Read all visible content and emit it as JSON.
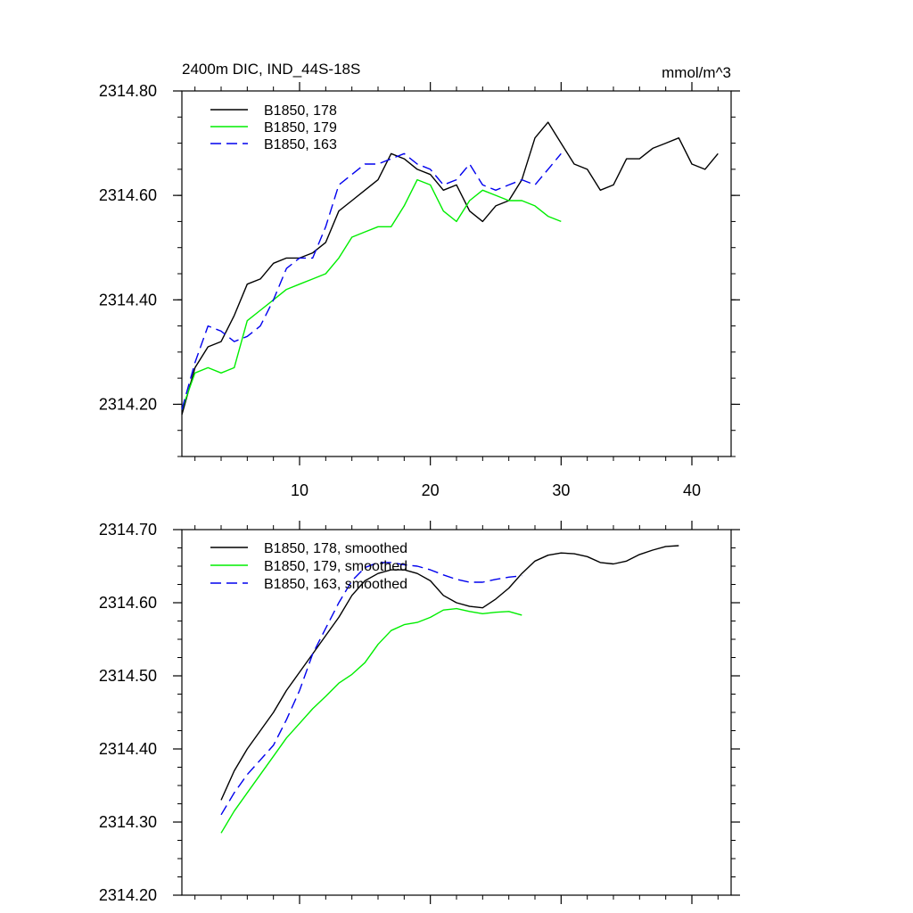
{
  "chart_data": [
    {
      "type": "line",
      "title": "2400m DIC, IND_44S-18S",
      "units": "mmol/m^3",
      "xlim": [
        1,
        43
      ],
      "ylim": [
        2314.1,
        2314.8
      ],
      "xticks": [
        10,
        20,
        30,
        40
      ],
      "xtick_labels": [
        "10",
        "20",
        "30",
        "40"
      ],
      "yticks": [
        2314.2,
        2314.4,
        2314.6,
        2314.8
      ],
      "ytick_labels": [
        "2314.20",
        "2314.40",
        "2314.60",
        "2314.80"
      ],
      "series": [
        {
          "name": "B1850, 178",
          "color": "#000000",
          "dash": "solid",
          "x": [
            1,
            2,
            3,
            4,
            5,
            6,
            7,
            8,
            9,
            10,
            11,
            12,
            13,
            14,
            15,
            16,
            17,
            18,
            19,
            20,
            21,
            22,
            23,
            24,
            25,
            26,
            27,
            28,
            29,
            30,
            31,
            32,
            33,
            34,
            35,
            36,
            37,
            38,
            39,
            40,
            41,
            42
          ],
          "values": [
            2314.18,
            2314.27,
            2314.31,
            2314.32,
            2314.37,
            2314.43,
            2314.44,
            2314.47,
            2314.48,
            2314.48,
            2314.49,
            2314.51,
            2314.57,
            2314.59,
            2314.61,
            2314.63,
            2314.68,
            2314.67,
            2314.65,
            2314.64,
            2314.61,
            2314.62,
            2314.57,
            2314.55,
            2314.58,
            2314.59,
            2314.63,
            2314.71,
            2314.74,
            2314.7,
            2314.66,
            2314.65,
            2314.61,
            2314.62,
            2314.67,
            2314.67,
            2314.69,
            2314.7,
            2314.71,
            2314.66,
            2314.65,
            2314.68
          ]
        },
        {
          "name": "B1850, 179",
          "color": "#00ee00",
          "dash": "solid",
          "x": [
            1,
            2,
            3,
            4,
            5,
            6,
            7,
            8,
            9,
            10,
            11,
            12,
            13,
            14,
            15,
            16,
            17,
            18,
            19,
            20,
            21,
            22,
            23,
            24,
            25,
            26,
            27,
            28,
            29,
            30
          ],
          "values": [
            2314.19,
            2314.26,
            2314.27,
            2314.26,
            2314.27,
            2314.36,
            2314.38,
            2314.4,
            2314.42,
            2314.43,
            2314.44,
            2314.45,
            2314.48,
            2314.52,
            2314.53,
            2314.54,
            2314.54,
            2314.58,
            2314.63,
            2314.62,
            2314.57,
            2314.55,
            2314.59,
            2314.61,
            2314.6,
            2314.59,
            2314.59,
            2314.58,
            2314.56,
            2314.55
          ]
        },
        {
          "name": "B1850, 163",
          "color": "#0000ee",
          "dash": "dashed",
          "x": [
            1,
            2,
            3,
            4,
            5,
            6,
            7,
            8,
            9,
            10,
            11,
            12,
            13,
            14,
            15,
            16,
            17,
            18,
            19,
            20,
            21,
            22,
            23,
            24,
            25,
            26,
            27,
            28,
            29,
            30
          ],
          "values": [
            2314.19,
            2314.28,
            2314.35,
            2314.34,
            2314.32,
            2314.33,
            2314.35,
            2314.4,
            2314.46,
            2314.48,
            2314.48,
            2314.54,
            2314.62,
            2314.64,
            2314.66,
            2314.66,
            2314.67,
            2314.68,
            2314.66,
            2314.65,
            2314.62,
            2314.63,
            2314.66,
            2314.62,
            2314.61,
            2314.62,
            2314.63,
            2314.62,
            2314.65,
            2314.68
          ]
        }
      ]
    },
    {
      "type": "line",
      "title": "",
      "xlim": [
        1,
        43
      ],
      "ylim": [
        2314.2,
        2314.7
      ],
      "xticks": [
        10,
        20,
        30,
        40
      ],
      "yticks": [
        2314.2,
        2314.3,
        2314.4,
        2314.5,
        2314.6,
        2314.7
      ],
      "ytick_labels": [
        "2314.20",
        "2314.30",
        "2314.40",
        "2314.50",
        "2314.60",
        "2314.70"
      ],
      "series": [
        {
          "name": "B1850, 178, smoothed",
          "color": "#000000",
          "dash": "solid",
          "x": [
            4,
            5,
            6,
            7,
            8,
            9,
            10,
            11,
            12,
            13,
            14,
            15,
            16,
            17,
            18,
            19,
            20,
            21,
            22,
            23,
            24,
            25,
            26,
            27,
            28,
            29,
            30,
            31,
            32,
            33,
            34,
            35,
            36,
            37,
            38,
            39
          ],
          "values": [
            2314.33,
            2314.37,
            2314.4,
            2314.425,
            2314.45,
            2314.48,
            2314.505,
            2314.53,
            2314.555,
            2314.58,
            2314.61,
            2314.63,
            2314.64,
            2314.645,
            2314.645,
            2314.64,
            2314.63,
            2314.61,
            2314.6,
            2314.595,
            2314.593,
            2314.605,
            2314.62,
            2314.64,
            2314.657,
            2314.665,
            2314.668,
            2314.667,
            2314.663,
            2314.655,
            2314.653,
            2314.657,
            2314.666,
            2314.672,
            2314.677,
            2314.678
          ]
        },
        {
          "name": "B1850, 179, smoothed",
          "color": "#00ee00",
          "dash": "solid",
          "x": [
            4,
            5,
            6,
            7,
            8,
            9,
            10,
            11,
            12,
            13,
            14,
            15,
            16,
            17,
            18,
            19,
            20,
            21,
            22,
            23,
            24,
            25,
            26,
            27
          ],
          "values": [
            2314.285,
            2314.315,
            2314.34,
            2314.365,
            2314.39,
            2314.415,
            2314.435,
            2314.455,
            2314.472,
            2314.49,
            2314.502,
            2314.518,
            2314.543,
            2314.562,
            2314.57,
            2314.573,
            2314.58,
            2314.59,
            2314.592,
            2314.588,
            2314.585,
            2314.587,
            2314.588,
            2314.583
          ]
        },
        {
          "name": "B1850, 163, smoothed",
          "color": "#0000ee",
          "dash": "dashed",
          "x": [
            4,
            5,
            6,
            7,
            8,
            9,
            10,
            11,
            12,
            13,
            14,
            15,
            16,
            17,
            18,
            19,
            20,
            21,
            22,
            23,
            24,
            25,
            26,
            27
          ],
          "values": [
            2314.31,
            2314.34,
            2314.365,
            2314.385,
            2314.405,
            2314.44,
            2314.48,
            2314.53,
            2314.565,
            2314.6,
            2314.63,
            2314.648,
            2314.655,
            2314.655,
            2314.652,
            2314.65,
            2314.645,
            2314.638,
            2314.632,
            2314.628,
            2314.628,
            2314.632,
            2314.635,
            2314.637
          ]
        }
      ]
    }
  ]
}
